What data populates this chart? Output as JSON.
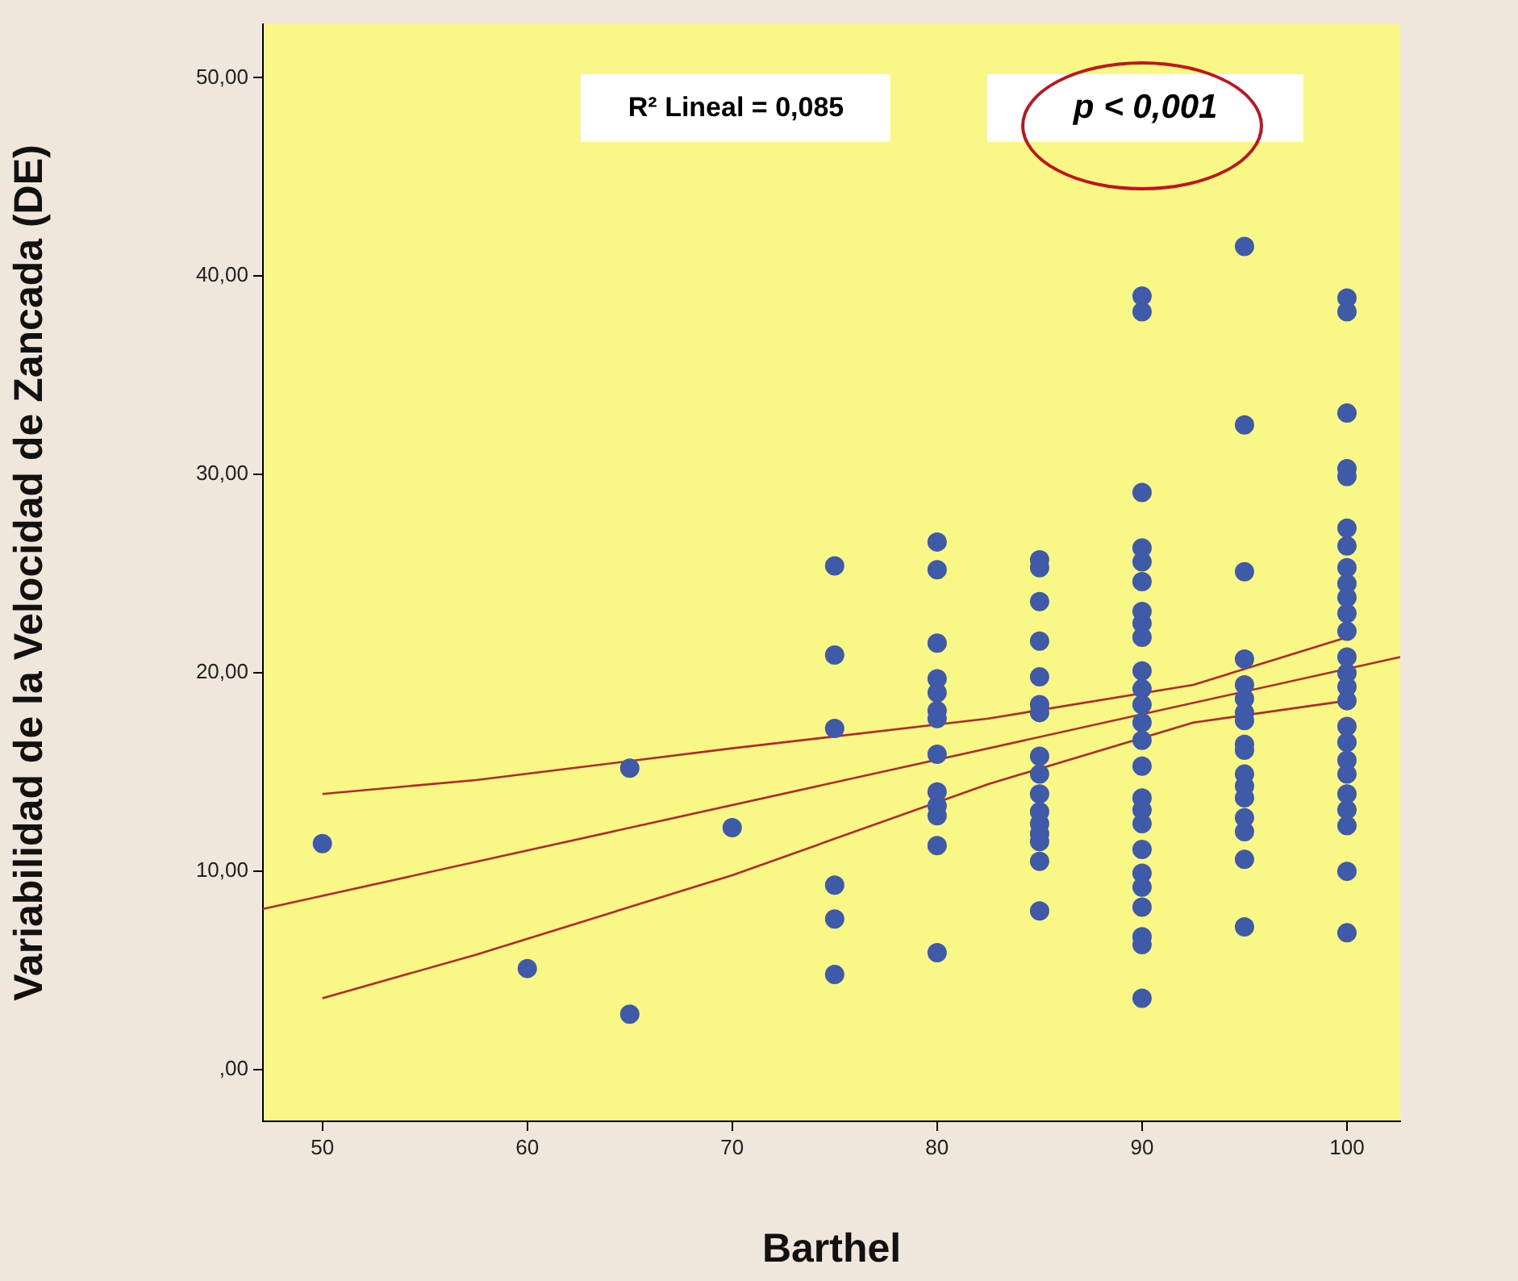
{
  "chart_data": {
    "type": "scatter",
    "xlabel": "Barthel",
    "ylabel": "Variabilidad de la Velocidad de Zancada (DE)",
    "annotations": [
      "R² Lineal = 0,085",
      "p < 0,001"
    ],
    "xlim": [
      47.1,
      102.6
    ],
    "xticks": [
      50,
      60,
      70,
      80,
      90,
      100
    ],
    "ylim": [
      -2.6,
      52.7
    ],
    "yticks": [
      {
        "value": 0,
        "label": ",00"
      },
      {
        "value": 10,
        "label": "10,00"
      },
      {
        "value": 20,
        "label": "20,00"
      },
      {
        "value": 30,
        "label": "30,00"
      },
      {
        "value": 40,
        "label": "40,00"
      },
      {
        "value": 50,
        "label": "50,00"
      }
    ],
    "grid": false,
    "legend": false,
    "series": [
      {
        "marker": "circle",
        "color": "#3f5aa9",
        "x": [
          50,
          60,
          65,
          65,
          70,
          75,
          75,
          75,
          75,
          75,
          75,
          80,
          80,
          80,
          80,
          80,
          80,
          80,
          80,
          80,
          80,
          80,
          80,
          80,
          85,
          85,
          85,
          85,
          85,
          85,
          85,
          85,
          85,
          85,
          85,
          85,
          85,
          85,
          85,
          85,
          90,
          90,
          90,
          90,
          90,
          90,
          90,
          90,
          90,
          90,
          90,
          90,
          90,
          90,
          90,
          90,
          90,
          90,
          90,
          90,
          90,
          90,
          90,
          90,
          90,
          95,
          95,
          95,
          95,
          95,
          95,
          95,
          95,
          95,
          95,
          95,
          95,
          95,
          95,
          95,
          95,
          95,
          100,
          100,
          100,
          100,
          100,
          100,
          100,
          100,
          100,
          100,
          100,
          100,
          100,
          100,
          100,
          100,
          100,
          100,
          100,
          100,
          100,
          100,
          100,
          100,
          100
        ],
        "values": [
          11.4,
          5.1,
          15.2,
          2.8,
          12.2,
          25.4,
          20.9,
          17.2,
          9.3,
          7.6,
          4.8,
          26.6,
          25.2,
          21.5,
          19.7,
          19.0,
          18.1,
          17.7,
          15.9,
          14.0,
          13.3,
          12.8,
          11.3,
          5.9,
          25.7,
          25.3,
          23.6,
          21.6,
          19.8,
          18.4,
          18.0,
          15.8,
          14.9,
          13.9,
          13.0,
          12.4,
          11.9,
          11.5,
          10.5,
          8.0,
          39.0,
          38.2,
          29.1,
          26.3,
          25.6,
          24.6,
          23.1,
          22.5,
          21.8,
          20.1,
          19.2,
          18.4,
          17.5,
          16.6,
          15.3,
          13.7,
          13.1,
          12.4,
          11.1,
          9.9,
          9.2,
          8.2,
          6.7,
          6.3,
          3.6,
          41.5,
          32.5,
          25.1,
          20.7,
          19.4,
          18.7,
          18.0,
          17.6,
          16.4,
          16.1,
          14.9,
          14.3,
          13.7,
          12.7,
          12.0,
          10.6,
          7.2,
          38.9,
          38.2,
          33.1,
          30.3,
          29.9,
          27.3,
          26.4,
          25.3,
          24.5,
          23.8,
          23.0,
          22.1,
          20.8,
          20.0,
          19.3,
          18.6,
          17.3,
          16.5,
          15.6,
          14.9,
          13.9,
          13.1,
          12.3,
          10.0,
          6.9
        ]
      },
      {
        "type": "line",
        "marker": "none",
        "color": "#b22a2a",
        "x": [
          47.1,
          102.6
        ],
        "values": [
          8.1,
          20.8
        ]
      },
      {
        "type": "line",
        "marker": "none",
        "color": "#b22a2a",
        "x": [
          50,
          57.5,
          70,
          82.5,
          92.5,
          100
        ],
        "values": [
          13.9,
          14.6,
          16.2,
          17.7,
          19.4,
          21.8
        ]
      },
      {
        "type": "line",
        "marker": "none",
        "color": "#b22a2a",
        "x": [
          50,
          57.5,
          70,
          82.5,
          92.5,
          100
        ],
        "values": [
          3.6,
          5.8,
          9.8,
          14.4,
          17.5,
          18.6
        ]
      }
    ]
  }
}
